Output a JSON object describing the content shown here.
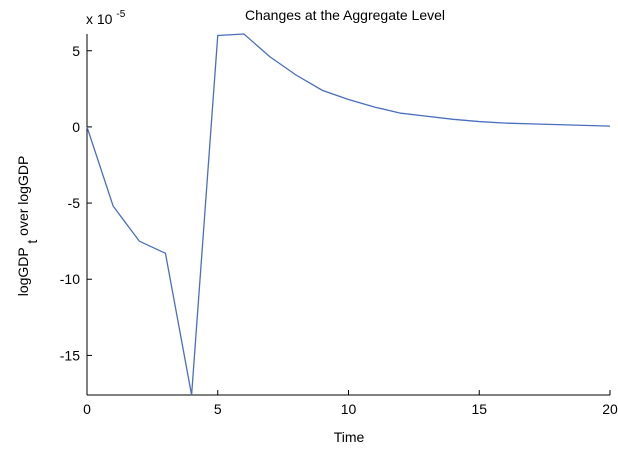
{
  "chart_data": {
    "type": "line",
    "title": "Changes at the Aggregate Level",
    "xlabel": "Time",
    "ylabel": {
      "main": "logGDP",
      "subscript": "t",
      "rest": " over logGDP"
    },
    "exponent_label": {
      "base": "x 10",
      "exp": "-5"
    },
    "xlim": [
      0,
      20
    ],
    "ylim": [
      -17.6,
      6.1
    ],
    "x_ticks": [
      "0",
      "5",
      "10",
      "15",
      "20"
    ],
    "y_ticks": [
      "5",
      "0",
      "-5",
      "-10",
      "-15"
    ],
    "grid": false,
    "series": [
      {
        "color": "#4a6ebf",
        "x": [
          0,
          1,
          2,
          3,
          4,
          5,
          6,
          7,
          8,
          9,
          10,
          11,
          12,
          13,
          14,
          15,
          16,
          17,
          18,
          19,
          20
        ],
        "y": [
          0,
          -5.2,
          -7.5,
          -8.3,
          -17.6,
          6.0,
          6.1,
          4.6,
          3.4,
          2.4,
          1.8,
          1.3,
          0.9,
          0.7,
          0.5,
          0.35,
          0.25,
          0.2,
          0.15,
          0.1,
          0.05
        ]
      }
    ]
  }
}
